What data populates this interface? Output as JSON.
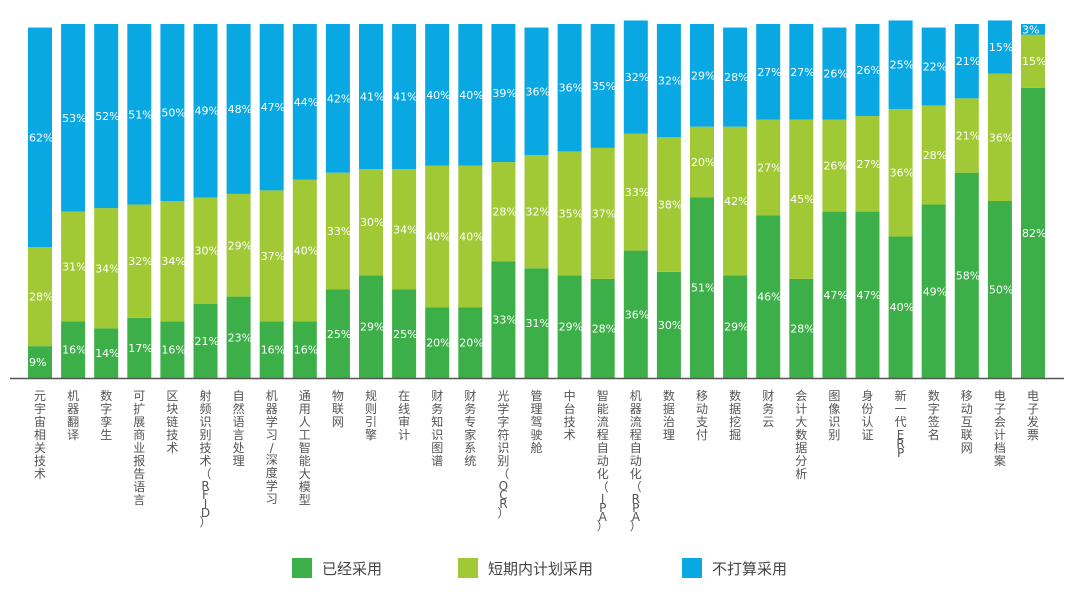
{
  "chart_data": {
    "type": "bar",
    "stacked": true,
    "percent": true,
    "categories": [
      "元宇宙相关技术",
      "机器翻译",
      "数字孪生",
      "可扩展商业报告语言",
      "区块链技术",
      "射频识别技术（RFID）",
      "自然语言处理",
      "机器学习/深度学习",
      "通用人工智能大模型",
      "物联网",
      "规则引擎",
      "在线审计",
      "财务知识图谱",
      "财务专家系统",
      "光学字符识别（OCR）",
      "管理驾驶舱",
      "中台技术",
      "智能流程自动化（IPA）",
      "机器流程自动化（RPA）",
      "数据治理",
      "移动支付",
      "数据挖掘",
      "财务云",
      "会计大数据分析",
      "图像识别",
      "身份认证",
      "新一代ERP",
      "数字签名",
      "移动互联网",
      "电子会计档案",
      "电子发票"
    ],
    "series": [
      {
        "name": "已经采用",
        "color": "#3daf49",
        "values": [
          9,
          16,
          14,
          17,
          16,
          21,
          23,
          16,
          16,
          25,
          29,
          25,
          20,
          20,
          33,
          31,
          29,
          28,
          36,
          30,
          51,
          29,
          46,
          28,
          47,
          47,
          40,
          49,
          58,
          50,
          82
        ]
      },
      {
        "name": "短期内计划采用",
        "color": "#a0c935",
        "values": [
          28,
          31,
          34,
          32,
          34,
          30,
          29,
          37,
          40,
          33,
          30,
          34,
          40,
          40,
          28,
          32,
          35,
          37,
          33,
          38,
          20,
          42,
          27,
          45,
          26,
          27,
          36,
          28,
          21,
          36,
          15
        ]
      },
      {
        "name": "不打算采用",
        "color": "#0aa8e2",
        "values": [
          62,
          53,
          52,
          51,
          50,
          49,
          48,
          47,
          44,
          42,
          41,
          41,
          40,
          40,
          39,
          36,
          36,
          35,
          32,
          32,
          29,
          28,
          27,
          27,
          26,
          26,
          25,
          22,
          21,
          15,
          3
        ]
      }
    ],
    "ylim": [
      0,
      100
    ],
    "grid": false,
    "legend": "bottom-center",
    "value_suffix": "%"
  }
}
